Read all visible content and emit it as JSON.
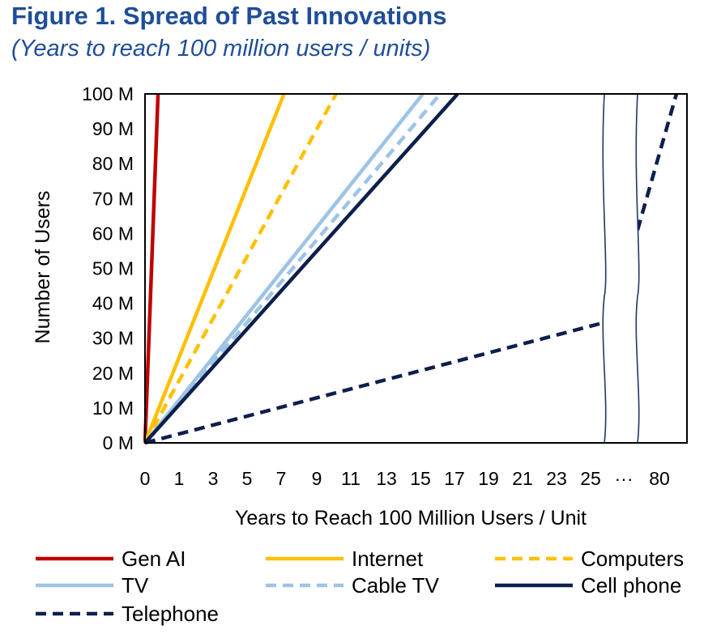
{
  "figure": {
    "title": "Figure 1. Spread of Past Innovations",
    "subtitle": "(Years to reach 100 million users / units)"
  },
  "chart_data": {
    "type": "line",
    "title": "Figure 1. Spread of Past Innovations",
    "subtitle": "(Years to reach 100 million users / units)",
    "xlabel": "Years to Reach 100 Million Users / Unit",
    "ylabel": "Number of Users",
    "x_tick_labels": [
      "0",
      "1",
      "3",
      "5",
      "7",
      "9",
      "11",
      "13",
      "15",
      "17",
      "19",
      "21",
      "23",
      "25",
      "···",
      "80"
    ],
    "y_tick_labels": [
      "0 M",
      "10 M",
      "20 M",
      "30 M",
      "40 M",
      "50 M",
      "60 M",
      "70 M",
      "80 M",
      "90 M",
      "100 M"
    ],
    "ylim": [
      0,
      100
    ],
    "axis_break": "between 26 and 80 years",
    "series": [
      {
        "name": "Gen AI",
        "years_to_100m": 0.75,
        "color": "#c00000",
        "dash": "solid"
      },
      {
        "name": "Internet",
        "years_to_100m": 8,
        "color": "#ffc000",
        "dash": "solid"
      },
      {
        "name": "Computers",
        "years_to_100m": 11,
        "color": "#ffc000",
        "dash": "dashed"
      },
      {
        "name": "TV",
        "years_to_100m": 16,
        "color": "#9dc3e6",
        "dash": "solid"
      },
      {
        "name": "Cable TV",
        "years_to_100m": 17,
        "color": "#9dc3e6",
        "dash": "dashed"
      },
      {
        "name": "Cell phone",
        "years_to_100m": 18,
        "color": "#0d1f4c",
        "dash": "solid"
      },
      {
        "name": "Telephone",
        "years_to_100m": 80,
        "color": "#0d1f4c",
        "dash": "dashed"
      }
    ],
    "legend": "bottom"
  }
}
